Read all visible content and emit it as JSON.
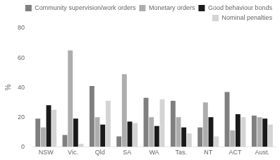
{
  "chart_data": {
    "type": "bar",
    "categories": [
      "NSW",
      "Vic.",
      "Qld",
      "SA",
      "WA",
      "Tas.",
      "NT",
      "ACT",
      "Aust."
    ],
    "series": [
      {
        "name": "Community supervision/work orders",
        "color": "#7f7f7f",
        "values": [
          19,
          8,
          41,
          7,
          33,
          31,
          13,
          37,
          21
        ]
      },
      {
        "name": "Monetary orders",
        "color": "#adadad",
        "values": [
          13,
          65,
          20,
          49,
          20,
          20,
          30,
          11,
          20
        ]
      },
      {
        "name": "Good behaviour bonds",
        "color": "#1a1a1a",
        "values": [
          28,
          19,
          15,
          17,
          14,
          13,
          20,
          22,
          19
        ]
      },
      {
        "name": "Nominal penalties",
        "color": "#d4d4d4",
        "values": [
          25,
          2,
          31,
          16,
          32,
          9,
          7,
          20,
          15
        ]
      }
    ],
    "ylabel": "%",
    "ylim": [
      0,
      80
    ],
    "yticks": [
      0,
      20,
      40,
      60,
      80
    ],
    "grid": false,
    "legend": "upper right"
  }
}
